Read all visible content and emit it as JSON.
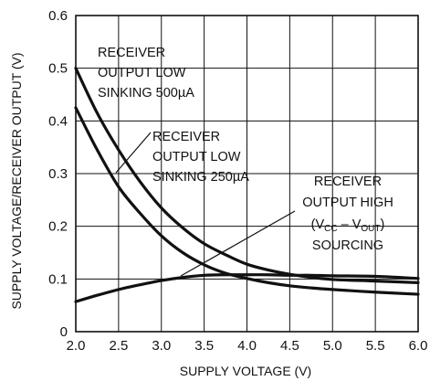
{
  "chart_data": {
    "type": "line",
    "xlabel": "SUPPLY VOLTAGE (V)",
    "ylabel": "SUPPLY VOLTAGE/RECEIVER OUTPUT (V)",
    "xlim": [
      2.0,
      6.0
    ],
    "ylim": [
      0,
      0.6
    ],
    "xticks": [
      "2.0",
      "2.5",
      "3.0",
      "3.5",
      "4.0",
      "4.5",
      "5.0",
      "5.5",
      "6.0"
    ],
    "yticks": [
      "0",
      "0.1",
      "0.2",
      "0.3",
      "0.4",
      "0.5",
      "0.6"
    ],
    "grid": true,
    "series": [
      {
        "annotation": [
          "RECEIVER",
          "OUTPUT LOW",
          "SINKING 500µA"
        ],
        "x": [
          2.0,
          2.25,
          2.5,
          2.75,
          3.0,
          3.25,
          3.5,
          3.75,
          4.0,
          4.25,
          4.5,
          4.75,
          5.0,
          5.5,
          6.0
        ],
        "y": [
          0.5,
          0.415,
          0.345,
          0.285,
          0.235,
          0.197,
          0.167,
          0.146,
          0.128,
          0.117,
          0.109,
          0.103,
          0.099,
          0.096,
          0.093
        ]
      },
      {
        "annotation": [
          "RECEIVER",
          "OUTPUT LOW",
          "SINKING 250µA"
        ],
        "x": [
          2.0,
          2.25,
          2.5,
          2.75,
          3.0,
          3.25,
          3.5,
          3.75,
          4.0,
          4.25,
          4.5,
          4.75,
          5.0,
          5.5,
          6.0
        ],
        "y": [
          0.425,
          0.345,
          0.275,
          0.225,
          0.182,
          0.15,
          0.127,
          0.111,
          0.101,
          0.093,
          0.087,
          0.083,
          0.08,
          0.075,
          0.071
        ]
      },
      {
        "annotation": [
          "RECEIVER",
          "OUTPUT HIGH",
          "(V",
          "CC",
          " – V",
          "OUT",
          ")",
          "SOURCING"
        ],
        "x": [
          2.0,
          2.25,
          2.5,
          2.75,
          3.0,
          3.25,
          3.5,
          3.75,
          4.0,
          4.25,
          4.5,
          4.75,
          5.0,
          5.5,
          6.0
        ],
        "y": [
          0.057,
          0.069,
          0.08,
          0.089,
          0.097,
          0.103,
          0.107,
          0.108,
          0.108,
          0.108,
          0.107,
          0.107,
          0.106,
          0.105,
          0.101
        ]
      }
    ]
  }
}
